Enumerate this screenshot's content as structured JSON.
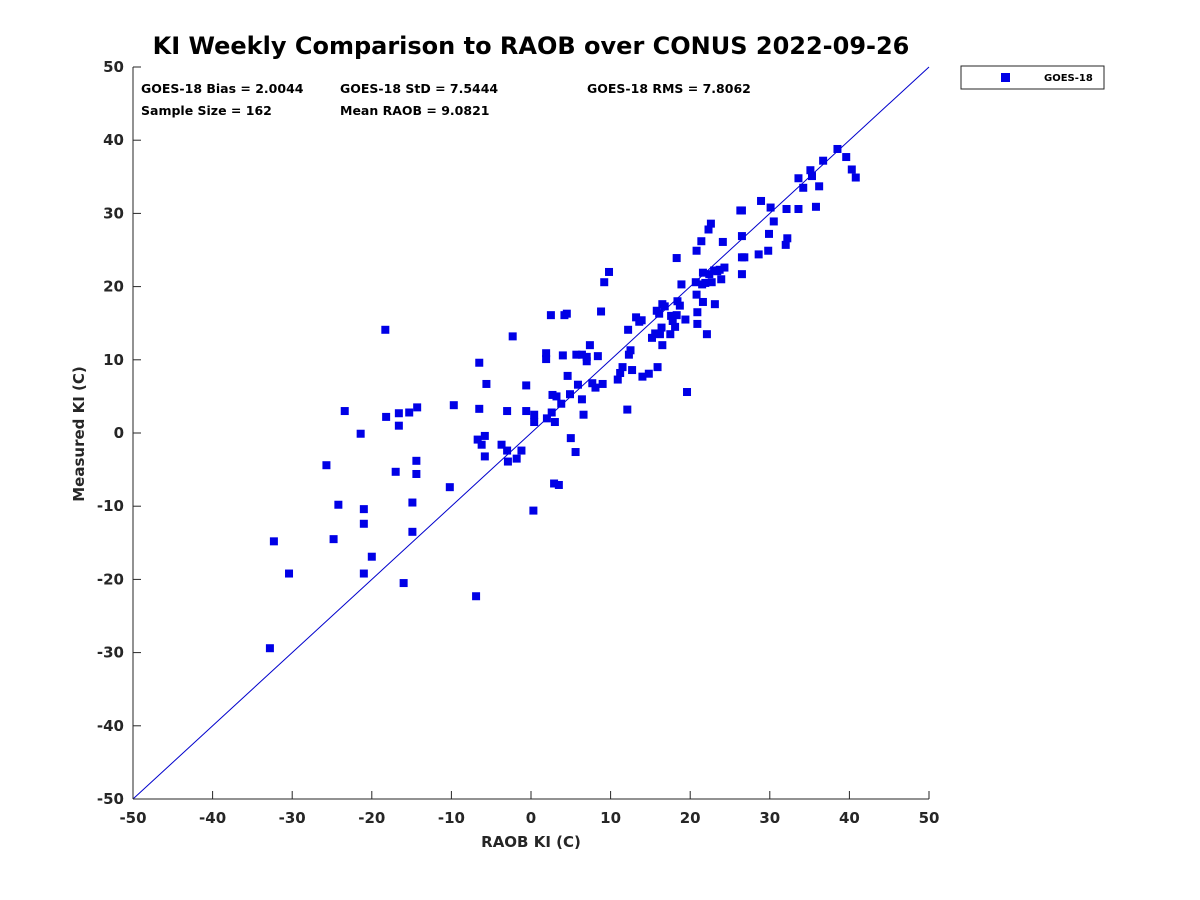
{
  "colors": {
    "series": "#0000e6",
    "axis": "#262626",
    "line": "#0000cc"
  },
  "chart_data": {
    "type": "scatter",
    "title": "KI Weekly Comparison to RAOB over CONUS 2022-09-26",
    "xlabel": "RAOB KI (C)",
    "ylabel": "Measured KI (C)",
    "xlim": [
      -50,
      50
    ],
    "ylim": [
      -50,
      50
    ],
    "xticks": [
      "-50",
      "-40",
      "-30",
      "-20",
      "-10",
      "0",
      "10",
      "20",
      "30",
      "40",
      "50"
    ],
    "yticks": [
      "-50",
      "-40",
      "-30",
      "-20",
      "-10",
      "0",
      "10",
      "20",
      "30",
      "40",
      "50"
    ],
    "grid": false,
    "reference_line": "y = x",
    "legend": {
      "position": "outside-top-right",
      "entries": [
        "GOES-18"
      ]
    },
    "stats": {
      "bias": "GOES-18 Bias = 2.0044",
      "std": "GOES-18 StD = 7.5444",
      "rms": "GOES-18 RMS = 7.8062",
      "sample": "Sample Size = 162",
      "mean": "Mean RAOB = 9.0821"
    },
    "series": [
      {
        "name": "GOES-18",
        "points": [
          [
            -32.8,
            -29.4
          ],
          [
            -32.3,
            -14.8
          ],
          [
            -30.4,
            -19.2
          ],
          [
            -25.7,
            -4.4
          ],
          [
            -24.8,
            -14.5
          ],
          [
            -24.2,
            -9.8
          ],
          [
            -23.4,
            3.0
          ],
          [
            -21.4,
            -0.1
          ],
          [
            -21.0,
            -19.2
          ],
          [
            -21.0,
            -12.4
          ],
          [
            -21.0,
            -10.4
          ],
          [
            -20.0,
            -16.9
          ],
          [
            -18.3,
            14.1
          ],
          [
            -18.2,
            2.2
          ],
          [
            -17.0,
            -5.3
          ],
          [
            -16.6,
            2.7
          ],
          [
            -16.6,
            1.0
          ],
          [
            -16.0,
            -20.5
          ],
          [
            -15.3,
            2.8
          ],
          [
            -14.9,
            -9.5
          ],
          [
            -14.9,
            -13.5
          ],
          [
            -14.4,
            -3.8
          ],
          [
            -14.4,
            -5.6
          ],
          [
            -14.3,
            3.5
          ],
          [
            -10.2,
            -7.4
          ],
          [
            -9.7,
            3.8
          ],
          [
            -6.9,
            -22.3
          ],
          [
            -6.7,
            -0.9
          ],
          [
            -6.5,
            3.3
          ],
          [
            -6.5,
            9.6
          ],
          [
            -6.2,
            -1.6
          ],
          [
            -5.8,
            -0.4
          ],
          [
            -5.8,
            -3.2
          ],
          [
            -5.6,
            6.7
          ],
          [
            -3.7,
            -1.6
          ],
          [
            -3.0,
            -2.4
          ],
          [
            -3.0,
            3.0
          ],
          [
            -2.9,
            -3.9
          ],
          [
            -2.3,
            13.2
          ],
          [
            -1.8,
            -3.5
          ],
          [
            -1.2,
            -2.4
          ],
          [
            -0.6,
            6.5
          ],
          [
            -0.6,
            3.0
          ],
          [
            0.3,
            -10.6
          ],
          [
            0.4,
            2.5
          ],
          [
            0.4,
            1.5
          ],
          [
            1.9,
            10.1
          ],
          [
            1.9,
            10.9
          ],
          [
            2.0,
            2.0
          ],
          [
            2.5,
            16.1
          ],
          [
            2.6,
            2.8
          ],
          [
            2.7,
            5.2
          ],
          [
            2.9,
            -6.9
          ],
          [
            3.0,
            1.5
          ],
          [
            3.2,
            5.0
          ],
          [
            3.5,
            -7.1
          ],
          [
            3.8,
            4.0
          ],
          [
            4.0,
            10.6
          ],
          [
            4.2,
            16.1
          ],
          [
            4.5,
            16.3
          ],
          [
            4.6,
            7.8
          ],
          [
            4.9,
            5.3
          ],
          [
            5.0,
            -0.7
          ],
          [
            5.6,
            -2.6
          ],
          [
            5.7,
            10.7
          ],
          [
            5.9,
            6.6
          ],
          [
            6.4,
            4.6
          ],
          [
            6.4,
            10.7
          ],
          [
            6.6,
            2.5
          ],
          [
            7.0,
            9.8
          ],
          [
            7.0,
            10.4
          ],
          [
            7.4,
            12.0
          ],
          [
            7.7,
            6.8
          ],
          [
            8.1,
            6.2
          ],
          [
            8.4,
            10.5
          ],
          [
            8.8,
            16.6
          ],
          [
            9.0,
            6.7
          ],
          [
            9.2,
            20.6
          ],
          [
            9.8,
            22.0
          ],
          [
            10.9,
            7.3
          ],
          [
            11.2,
            8.2
          ],
          [
            11.5,
            9.0
          ],
          [
            12.1,
            3.2
          ],
          [
            12.2,
            14.1
          ],
          [
            12.3,
            10.7
          ],
          [
            12.5,
            11.3
          ],
          [
            12.7,
            8.6
          ],
          [
            13.2,
            15.8
          ],
          [
            13.6,
            15.2
          ],
          [
            13.9,
            15.4
          ],
          [
            14.0,
            7.7
          ],
          [
            14.8,
            8.1
          ],
          [
            15.2,
            13.0
          ],
          [
            15.6,
            13.6
          ],
          [
            15.8,
            16.7
          ],
          [
            15.9,
            9.0
          ],
          [
            16.1,
            16.3
          ],
          [
            16.2,
            13.5
          ],
          [
            16.4,
            14.4
          ],
          [
            16.5,
            12.0
          ],
          [
            16.5,
            17.6
          ],
          [
            16.8,
            17.3
          ],
          [
            17.5,
            13.5
          ],
          [
            17.6,
            16.0
          ],
          [
            17.8,
            15.3
          ],
          [
            18.1,
            14.5
          ],
          [
            18.3,
            16.1
          ],
          [
            18.3,
            23.9
          ],
          [
            18.4,
            18.0
          ],
          [
            18.7,
            17.4
          ],
          [
            18.9,
            20.3
          ],
          [
            19.4,
            15.5
          ],
          [
            19.6,
            5.6
          ],
          [
            20.7,
            20.6
          ],
          [
            20.8,
            24.9
          ],
          [
            20.8,
            18.9
          ],
          [
            20.9,
            16.5
          ],
          [
            20.9,
            14.9
          ],
          [
            21.4,
            26.2
          ],
          [
            21.5,
            20.3
          ],
          [
            21.6,
            21.9
          ],
          [
            21.6,
            17.9
          ],
          [
            21.9,
            20.5
          ],
          [
            22.1,
            13.5
          ],
          [
            22.3,
            27.8
          ],
          [
            22.4,
            21.7
          ],
          [
            22.6,
            28.6
          ],
          [
            22.7,
            20.6
          ],
          [
            23.0,
            22.2
          ],
          [
            23.1,
            17.6
          ],
          [
            23.4,
            22.1
          ],
          [
            23.7,
            22.3
          ],
          [
            23.9,
            21.0
          ],
          [
            24.1,
            26.1
          ],
          [
            24.3,
            22.6
          ],
          [
            26.3,
            30.4
          ],
          [
            26.5,
            30.4
          ],
          [
            26.5,
            26.9
          ],
          [
            26.5,
            21.7
          ],
          [
            26.5,
            24.0
          ],
          [
            26.8,
            24.0
          ],
          [
            28.6,
            24.4
          ],
          [
            28.9,
            31.7
          ],
          [
            29.8,
            24.9
          ],
          [
            29.9,
            27.2
          ],
          [
            30.1,
            30.8
          ],
          [
            30.5,
            28.9
          ],
          [
            32.0,
            25.7
          ],
          [
            32.1,
            30.6
          ],
          [
            32.2,
            26.6
          ],
          [
            33.6,
            30.6
          ],
          [
            33.6,
            34.8
          ],
          [
            34.2,
            33.5
          ],
          [
            35.1,
            35.9
          ],
          [
            35.3,
            35.1
          ],
          [
            35.8,
            30.9
          ],
          [
            36.2,
            33.7
          ],
          [
            36.7,
            37.2
          ],
          [
            38.5,
            38.8
          ],
          [
            39.6,
            37.7
          ],
          [
            40.3,
            36.0
          ],
          [
            40.8,
            34.9
          ]
        ]
      }
    ]
  }
}
